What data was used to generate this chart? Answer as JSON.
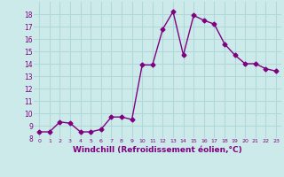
{
  "x": [
    0,
    1,
    2,
    3,
    4,
    5,
    6,
    7,
    8,
    9,
    10,
    11,
    12,
    13,
    14,
    15,
    16,
    17,
    18,
    19,
    20,
    21,
    22,
    23
  ],
  "y": [
    8.5,
    8.5,
    9.3,
    9.2,
    8.5,
    8.5,
    8.7,
    9.7,
    9.7,
    9.5,
    13.9,
    13.9,
    16.8,
    18.2,
    14.7,
    17.9,
    17.5,
    17.2,
    15.6,
    14.7,
    14.0,
    14.0,
    13.6,
    13.4
  ],
  "line_color": "#800080",
  "marker": "D",
  "marker_size": 2.5,
  "line_width": 1.0,
  "xlabel": "Windchill (Refroidissement éolien,°C)",
  "xlabel_fontsize": 6.5,
  "bg_color": "#cdeaea",
  "grid_color": "#b0d8d8",
  "tick_color": "#800080",
  "label_color": "#800080",
  "ylim": [
    8,
    19
  ],
  "xlim": [
    -0.5,
    23.5
  ],
  "yticks": [
    8,
    9,
    10,
    11,
    12,
    13,
    14,
    15,
    16,
    17,
    18
  ],
  "xticks": [
    0,
    1,
    2,
    3,
    4,
    5,
    6,
    7,
    8,
    9,
    10,
    11,
    12,
    13,
    14,
    15,
    16,
    17,
    18,
    19,
    20,
    21,
    22,
    23
  ]
}
